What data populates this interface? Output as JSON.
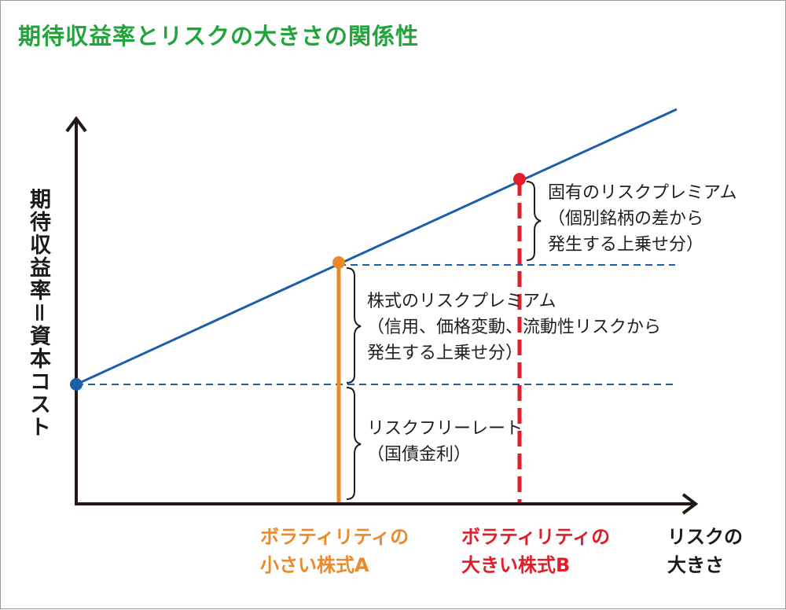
{
  "title": "期待収益率とリスクの大きさの関係性",
  "y_axis_label": "期待収益率＝資本コスト",
  "x_axis_label": [
    "リスクの",
    "大きさ"
  ],
  "annotations": {
    "specific_premium": [
      "固有のリスクプレミアム",
      "（個別銘柄の差から",
      "発生する上乗せ分）"
    ],
    "equity_premium": [
      "株式のリスクプレミアム",
      "（信用、価格変動、流動性リスクから",
      "発生する上乗せ分）"
    ],
    "risk_free": [
      "リスクフリーレート",
      "（国債金利）"
    ]
  },
  "stocks": {
    "a": {
      "label": [
        "ボラティリティの",
        "小さい株式A"
      ],
      "color": "#ea8a2a"
    },
    "b": {
      "label": [
        "ボラティリティの",
        "大きい株式B"
      ],
      "color": "#e21d2b"
    }
  },
  "colors": {
    "title": "#22a33b",
    "line": "#1b5faa",
    "axis": "#231815",
    "text": "#1f1f1f"
  }
}
